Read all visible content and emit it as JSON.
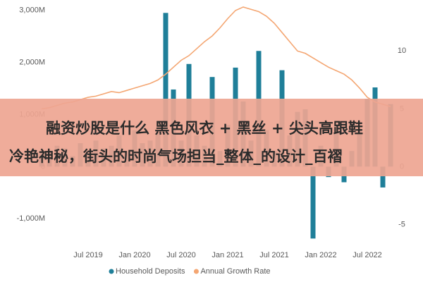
{
  "chart_data": {
    "type": "bar-line",
    "categories": [
      null,
      null,
      null,
      null,
      null,
      null,
      "Jul 2019",
      null,
      null,
      null,
      null,
      null,
      "Jan 2020",
      null,
      null,
      null,
      null,
      null,
      "Jul 2020",
      null,
      null,
      null,
      null,
      null,
      "Jan 2021",
      null,
      null,
      null,
      null,
      null,
      "Jul 2021",
      null,
      null,
      null,
      null,
      null,
      "Jan 2022",
      null,
      null,
      null,
      null,
      null,
      "Jul 2022",
      null,
      null,
      null
    ],
    "series": [
      {
        "name": "Household Deposits",
        "type": "bar",
        "color": "#1f7f99",
        "values": [
          300,
          250,
          400,
          350,
          200,
          450,
          300,
          500,
          350,
          400,
          600,
          300,
          700,
          450,
          500,
          650,
          2950,
          1480,
          500,
          1970,
          600,
          400,
          1720,
          300,
          800,
          1900,
          1250,
          500,
          2220,
          700,
          300,
          1850,
          600,
          1050,
          1100,
          -1380,
          400,
          -200,
          800,
          -300,
          300,
          700,
          1300,
          1520,
          -400,
          1200
        ]
      },
      {
        "name": "Annual Growth Rate",
        "type": "line",
        "axis": "y2",
        "color": "#f4a672",
        "values": [
          5.0,
          5.1,
          5.3,
          5.5,
          5.6,
          5.8,
          6.0,
          6.1,
          6.3,
          6.5,
          6.4,
          6.6,
          6.8,
          7.0,
          7.2,
          7.5,
          8.0,
          8.6,
          9.2,
          9.6,
          10.2,
          10.8,
          11.3,
          12.0,
          12.8,
          13.5,
          13.8,
          13.6,
          13.4,
          13.0,
          12.4,
          11.6,
          10.8,
          10.0,
          9.8,
          9.4,
          9.0,
          8.6,
          8.3,
          8.0,
          7.5,
          6.8,
          6.0,
          5.6,
          5.4,
          5.2
        ]
      }
    ],
    "ylim": [
      -1470,
      3130
    ],
    "yticks": [
      {
        "value": -1000,
        "label": "-1,000M"
      },
      0,
      {
        "value": 1000,
        "label": "1,000M"
      },
      {
        "value": 2000,
        "label": "2,000M"
      },
      {
        "value": 3000,
        "label": "3,000M"
      }
    ],
    "y2lim": [
      -6.6,
      14.1
    ],
    "y2ticks": [
      -5,
      0,
      5,
      10
    ],
    "legend": "bottom"
  },
  "overlay": {
    "lines": [
      "融资炒股是什么 黑色风衣 + 黑丝 + 尖头高跟鞋",
      "，冷艳神秘，街头的时尚气场担当_整体_的设计_百褶"
    ]
  }
}
